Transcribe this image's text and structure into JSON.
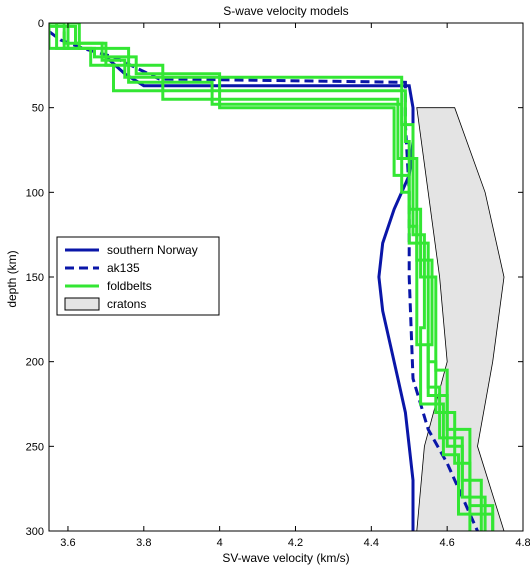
{
  "chart_data": {
    "type": "line",
    "title": "S-wave velocity models",
    "xlabel": "SV-wave velocity (km/s)",
    "ylabel": "depth (km)",
    "xlim": [
      3.55,
      4.8
    ],
    "ylim": [
      0,
      300
    ],
    "y_reversed": true,
    "x_ticks": [
      3.6,
      3.8,
      4,
      4.2,
      4.4,
      4.6,
      4.8
    ],
    "x_tick_labels": [
      "3.6",
      "3.8",
      "4",
      "4.2",
      "4.4",
      "4.6",
      "4.8"
    ],
    "y_ticks": [
      0,
      50,
      100,
      150,
      200,
      250,
      300
    ],
    "y_tick_labels": [
      "0",
      "50",
      "100",
      "150",
      "200",
      "250",
      "300"
    ],
    "grid": false,
    "legend_position": "center-left",
    "colors": {
      "blue": "#0a16a8",
      "green": "#33e633",
      "craton_fill": "#e4e4e4",
      "craton_edge": "#000000"
    },
    "legend": [
      {
        "label": "southern Norway",
        "style": "solid",
        "color": "#0a16a8"
      },
      {
        "label": "ak135",
        "style": "dashed",
        "color": "#0a16a8"
      },
      {
        "label": "foldbelts",
        "style": "solid",
        "color": "#33e633"
      },
      {
        "label": "cratons",
        "style": "patch",
        "color": "#e4e4e4"
      }
    ],
    "cratons": {
      "left": [
        [
          4.52,
          50
        ],
        [
          4.55,
          100
        ],
        [
          4.58,
          150
        ],
        [
          4.6,
          200
        ],
        [
          4.54,
          250
        ],
        [
          4.52,
          300
        ]
      ],
      "right": [
        [
          4.62,
          50
        ],
        [
          4.7,
          100
        ],
        [
          4.75,
          150
        ],
        [
          4.72,
          200
        ],
        [
          4.68,
          250
        ],
        [
          4.75,
          300
        ]
      ]
    },
    "series": [
      {
        "name": "southern Norway",
        "style": "solid",
        "color": "#0a16a8",
        "points": [
          [
            3.7,
            20
          ],
          [
            3.75,
            30
          ],
          [
            3.8,
            37
          ],
          [
            4.5,
            37
          ],
          [
            4.51,
            50
          ],
          [
            4.51,
            70
          ],
          [
            4.5,
            90
          ],
          [
            4.46,
            110
          ],
          [
            4.43,
            130
          ],
          [
            4.42,
            150
          ],
          [
            4.43,
            170
          ],
          [
            4.45,
            190
          ],
          [
            4.47,
            210
          ],
          [
            4.49,
            230
          ],
          [
            4.5,
            250
          ],
          [
            4.51,
            270
          ],
          [
            4.51,
            300
          ]
        ]
      },
      {
        "name": "ak135",
        "style": "dashed",
        "color": "#0a16a8",
        "points": [
          [
            3.55,
            5
          ],
          [
            3.58,
            10
          ],
          [
            3.64,
            15
          ],
          [
            3.72,
            20
          ],
          [
            3.84,
            33
          ],
          [
            4.49,
            35
          ],
          [
            4.49,
            60
          ],
          [
            4.5,
            100
          ],
          [
            4.5,
            150
          ],
          [
            4.51,
            210
          ],
          [
            4.55,
            240
          ],
          [
            4.6,
            260
          ],
          [
            4.68,
            300
          ]
        ]
      },
      {
        "name": "foldbelts",
        "style": "solid",
        "color": "#33e633",
        "points": [
          [
            3.55,
            0
          ],
          [
            3.55,
            15
          ],
          [
            3.6,
            15
          ],
          [
            3.6,
            0
          ],
          [
            3.63,
            0
          ],
          [
            3.63,
            15
          ],
          [
            3.76,
            15
          ],
          [
            3.76,
            35
          ],
          [
            3.98,
            35
          ],
          [
            3.98,
            48
          ],
          [
            4.48,
            48
          ],
          [
            4.48,
            100
          ],
          [
            4.5,
            100
          ],
          [
            4.5,
            130
          ],
          [
            4.55,
            130
          ],
          [
            4.55,
            200
          ],
          [
            4.57,
            200
          ],
          [
            4.57,
            230
          ],
          [
            4.62,
            230
          ],
          [
            4.62,
            260
          ],
          [
            4.66,
            260
          ],
          [
            4.66,
            300
          ]
        ]
      },
      {
        "name": "foldbelts",
        "style": "solid",
        "color": "#33e633",
        "points": [
          [
            3.57,
            0
          ],
          [
            3.57,
            15
          ],
          [
            3.66,
            15
          ],
          [
            3.66,
            25
          ],
          [
            3.85,
            25
          ],
          [
            3.85,
            45
          ],
          [
            4.47,
            45
          ],
          [
            4.47,
            80
          ],
          [
            4.52,
            80
          ],
          [
            4.52,
            140
          ],
          [
            4.56,
            140
          ],
          [
            4.56,
            190
          ],
          [
            4.55,
            190
          ],
          [
            4.55,
            220
          ],
          [
            4.6,
            220
          ],
          [
            4.6,
            250
          ],
          [
            4.64,
            250
          ],
          [
            4.64,
            280
          ],
          [
            4.7,
            280
          ],
          [
            4.7,
            300
          ]
        ]
      },
      {
        "name": "foldbelts",
        "style": "solid",
        "color": "#33e633",
        "points": [
          [
            3.55,
            2
          ],
          [
            3.62,
            2
          ],
          [
            3.62,
            12
          ],
          [
            3.7,
            12
          ],
          [
            3.7,
            25
          ],
          [
            3.72,
            25
          ],
          [
            3.72,
            40
          ],
          [
            4.49,
            40
          ],
          [
            4.49,
            70
          ],
          [
            4.5,
            70
          ],
          [
            4.5,
            110
          ],
          [
            4.53,
            110
          ],
          [
            4.53,
            150
          ],
          [
            4.57,
            150
          ],
          [
            4.57,
            205
          ],
          [
            4.6,
            205
          ],
          [
            4.6,
            240
          ],
          [
            4.66,
            240
          ],
          [
            4.66,
            285
          ],
          [
            4.72,
            285
          ],
          [
            4.72,
            300
          ]
        ]
      },
      {
        "name": "foldbelts",
        "style": "solid",
        "color": "#33e633",
        "points": [
          [
            3.55,
            0
          ],
          [
            3.59,
            0
          ],
          [
            3.59,
            15
          ],
          [
            3.67,
            15
          ],
          [
            3.67,
            20
          ],
          [
            3.78,
            20
          ],
          [
            3.78,
            30
          ],
          [
            4.0,
            30
          ],
          [
            4.0,
            50
          ],
          [
            4.46,
            50
          ],
          [
            4.46,
            90
          ],
          [
            4.5,
            90
          ],
          [
            4.5,
            120
          ],
          [
            4.52,
            120
          ],
          [
            4.52,
            170
          ],
          [
            4.52,
            190
          ],
          [
            4.55,
            190
          ],
          [
            4.55,
            215
          ],
          [
            4.58,
            215
          ],
          [
            4.58,
            245
          ],
          [
            4.64,
            245
          ],
          [
            4.64,
            270
          ],
          [
            4.69,
            270
          ],
          [
            4.69,
            300
          ]
        ]
      },
      {
        "name": "foldbelts",
        "style": "solid",
        "color": "#33e633",
        "points": [
          [
            3.59,
            5
          ],
          [
            3.59,
            12
          ],
          [
            3.69,
            12
          ],
          [
            3.69,
            22
          ],
          [
            3.75,
            22
          ],
          [
            3.75,
            32
          ],
          [
            4.48,
            32
          ],
          [
            4.48,
            60
          ],
          [
            4.51,
            60
          ],
          [
            4.51,
            125
          ],
          [
            4.54,
            125
          ],
          [
            4.54,
            180
          ],
          [
            4.53,
            180
          ],
          [
            4.53,
            225
          ],
          [
            4.59,
            225
          ],
          [
            4.59,
            255
          ],
          [
            4.63,
            255
          ],
          [
            4.63,
            290
          ],
          [
            4.72,
            290
          ],
          [
            4.72,
            300
          ]
        ]
      }
    ]
  }
}
